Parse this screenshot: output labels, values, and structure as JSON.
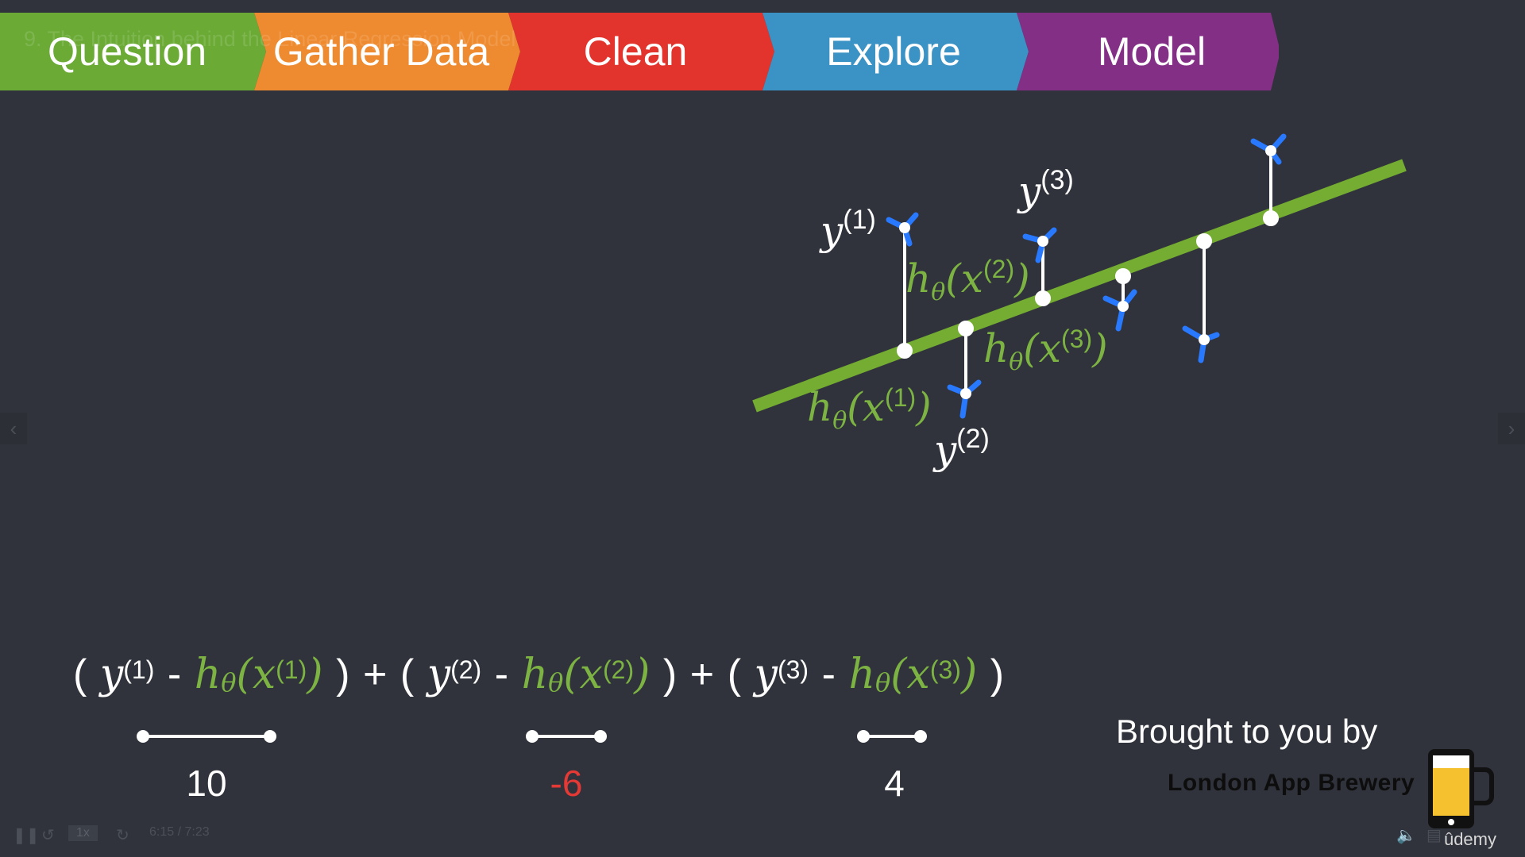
{
  "lecture_title": "9. The Intuition behind the Linear Regression Model",
  "pipeline": {
    "stages": [
      {
        "label": "Question",
        "color": "#6aaa35"
      },
      {
        "label": "Gather Data",
        "color": "#ee8a2f"
      },
      {
        "label": "Clean",
        "color": "#e2342d"
      },
      {
        "label": "Explore",
        "color": "#3b92c4"
      },
      {
        "label": "Model",
        "color": "#832f86"
      }
    ]
  },
  "diagram": {
    "regression_line_color": "#74ad32",
    "marker_color": "#2979ff",
    "labels": {
      "y1": {
        "base": "y",
        "sup": "(1)"
      },
      "y2": {
        "base": "y",
        "sup": "(2)"
      },
      "y3": {
        "base": "y",
        "sup": "(3)"
      },
      "h1": {
        "base": "h",
        "sub": "θ",
        "open": "(",
        "x": "x",
        "sup": "(1)",
        "close": ")"
      },
      "h2": {
        "base": "h",
        "sub": "θ",
        "open": "(",
        "x": "x",
        "sup": "(2)",
        "close": ")"
      },
      "h3": {
        "base": "h",
        "sub": "θ",
        "open": "(",
        "x": "x",
        "sup": "(3)",
        "close": ")"
      }
    }
  },
  "formula": {
    "open": "(",
    "close": ")",
    "minus": "-",
    "plus": "+",
    "terms": [
      {
        "y": "y",
        "y_sup": "(1)",
        "h": "h",
        "h_sub": "θ",
        "x": "x",
        "x_sup": "(1)"
      },
      {
        "y": "y",
        "y_sup": "(2)",
        "h": "h",
        "h_sub": "θ",
        "x": "x",
        "x_sup": "(2)"
      },
      {
        "y": "y",
        "y_sup": "(3)",
        "h": "h",
        "h_sub": "θ",
        "x": "x",
        "x_sup": "(3)"
      }
    ]
  },
  "residuals": [
    {
      "value": "10",
      "color": "#ffffff"
    },
    {
      "value": "-6",
      "color": "#e53935"
    },
    {
      "value": "4",
      "color": "#ffffff"
    }
  ],
  "brand": {
    "caption": "Brought to you by",
    "name": "London App Brewery"
  },
  "player": {
    "speed": "1x",
    "timecode": "6:15 / 7:23",
    "provider": "ûdemy",
    "icons": [
      "pause-icon",
      "rewind-icon",
      "forward-icon",
      "volume-icon",
      "captions-icon",
      "settings-icon",
      "fullscreen-icon"
    ]
  },
  "nav": {
    "prev": "‹",
    "next": "›"
  }
}
